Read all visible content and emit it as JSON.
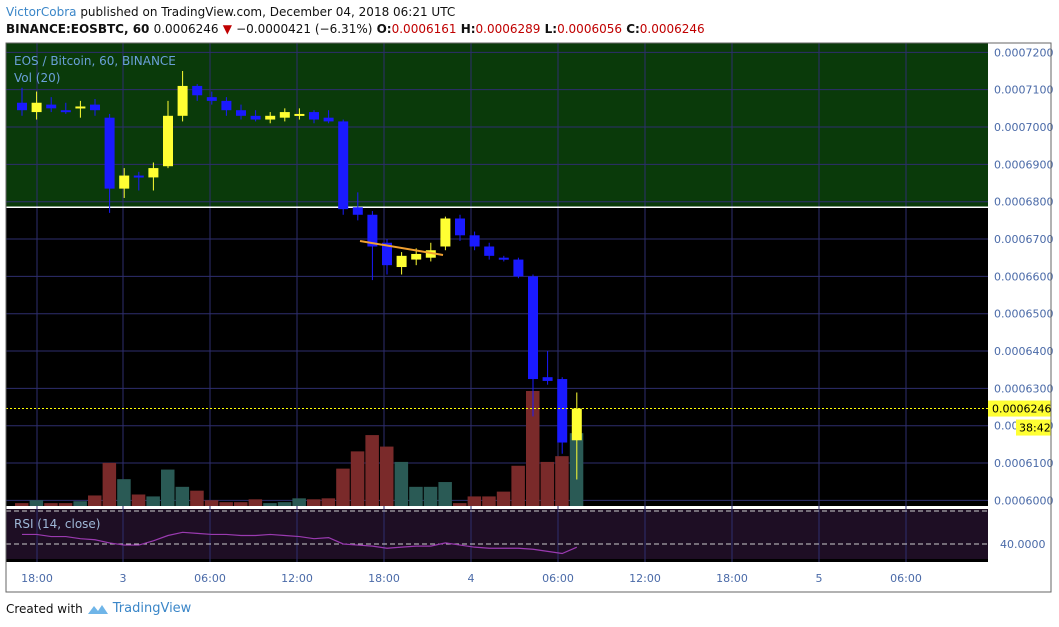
{
  "header": {
    "author": "VictorCobra",
    "published_text": "published on TradingView.com, December 04, 2018 06:21 UTC",
    "symbol": "BINANCE:EOSBTC, 60",
    "last": "0.0006246",
    "arrow": "▼",
    "change": "−0.0000421 (−6.31%)",
    "o_label": "O:",
    "o_value": "0.0006161",
    "h_label": "H:",
    "h_value": "0.0006289",
    "l_label": "L:",
    "l_value": "0.0006056",
    "c_label": "C:",
    "c_value": "0.0006246"
  },
  "overlays": {
    "series_title": "EOS / Bitcoin, 60, BINANCE",
    "volume_label": "Vol (20)",
    "rsi_label": "RSI (14, close)"
  },
  "price_axis": {
    "ticks": [
      "0.0007200",
      "0.0007100",
      "0.0007000",
      "0.0006900",
      "0.0006800",
      "0.0006700",
      "0.0006600",
      "0.0006500",
      "0.0006400",
      "0.0006300",
      "0.0006200",
      "0.0006100",
      "0.0006000"
    ],
    "current_price": "0.0006246",
    "countdown": "38:42"
  },
  "rsi_axis": {
    "tick": "40.0000"
  },
  "time_axis": [
    "18:00",
    "3",
    "06:00",
    "12:00",
    "18:00",
    "4",
    "06:00",
    "12:00",
    "18:00",
    "5",
    "06:00"
  ],
  "footer": {
    "created_with": "Created with",
    "brand": "TradingView"
  },
  "colors": {
    "bull": "#ffff33",
    "bear": "#1a1aff",
    "zone": "#0a3a0a",
    "vol_up": "#2a5a55",
    "vol_down": "#7a2a2a",
    "rsi_line": "#9a3ab0",
    "trendline": "#f0a030"
  },
  "chart_data": {
    "type": "candlestick",
    "title": "EOS / Bitcoin, 60, BINANCE",
    "ylim": [
      0.0005985,
      0.0007225
    ],
    "candles": [
      {
        "o": 0.0007065,
        "h": 0.0007105,
        "l": 0.000703,
        "c": 0.0007045
      },
      {
        "o": 0.000704,
        "h": 0.0007095,
        "l": 0.000702,
        "c": 0.0007065
      },
      {
        "o": 0.000706,
        "h": 0.000708,
        "l": 0.000704,
        "c": 0.000705
      },
      {
        "o": 0.0007045,
        "h": 0.0007065,
        "l": 0.0007035,
        "c": 0.000704
      },
      {
        "o": 0.000705,
        "h": 0.000707,
        "l": 0.0007025,
        "c": 0.0007055
      },
      {
        "o": 0.000706,
        "h": 0.0007075,
        "l": 0.000703,
        "c": 0.0007045
      },
      {
        "o": 0.0007025,
        "h": 0.0007035,
        "l": 0.000677,
        "c": 0.0006835
      },
      {
        "o": 0.0006835,
        "h": 0.000689,
        "l": 0.000681,
        "c": 0.000687
      },
      {
        "o": 0.000687,
        "h": 0.000688,
        "l": 0.000683,
        "c": 0.0006865
      },
      {
        "o": 0.0006865,
        "h": 0.0006905,
        "l": 0.000683,
        "c": 0.000689
      },
      {
        "o": 0.0006895,
        "h": 0.000707,
        "l": 0.000689,
        "c": 0.000703
      },
      {
        "o": 0.000703,
        "h": 0.000715,
        "l": 0.0007015,
        "c": 0.000711
      },
      {
        "o": 0.000711,
        "h": 0.0007115,
        "l": 0.000707,
        "c": 0.0007085
      },
      {
        "o": 0.000708,
        "h": 0.0007095,
        "l": 0.000706,
        "c": 0.000707
      },
      {
        "o": 0.000707,
        "h": 0.000708,
        "l": 0.000703,
        "c": 0.0007045
      },
      {
        "o": 0.0007045,
        "h": 0.000706,
        "l": 0.000702,
        "c": 0.000703
      },
      {
        "o": 0.000703,
        "h": 0.0007045,
        "l": 0.0007015,
        "c": 0.000702
      },
      {
        "o": 0.000702,
        "h": 0.000704,
        "l": 0.000701,
        "c": 0.000703
      },
      {
        "o": 0.0007025,
        "h": 0.000705,
        "l": 0.0007015,
        "c": 0.000704
      },
      {
        "o": 0.0007035,
        "h": 0.000705,
        "l": 0.000702,
        "c": 0.0007035
      },
      {
        "o": 0.000704,
        "h": 0.0007045,
        "l": 0.000701,
        "c": 0.000702
      },
      {
        "o": 0.0007025,
        "h": 0.0007045,
        "l": 0.000701,
        "c": 0.0007015
      },
      {
        "o": 0.0007015,
        "h": 0.000702,
        "l": 0.0006765,
        "c": 0.000678
      },
      {
        "o": 0.0006785,
        "h": 0.0006825,
        "l": 0.000675,
        "c": 0.0006765
      },
      {
        "o": 0.0006765,
        "h": 0.0006775,
        "l": 0.000659,
        "c": 0.000668
      },
      {
        "o": 0.000669,
        "h": 0.00067,
        "l": 0.0006605,
        "c": 0.000663
      },
      {
        "o": 0.0006625,
        "h": 0.0006665,
        "l": 0.0006605,
        "c": 0.0006655
      },
      {
        "o": 0.0006645,
        "h": 0.0006675,
        "l": 0.000663,
        "c": 0.000666
      },
      {
        "o": 0.000665,
        "h": 0.000669,
        "l": 0.000664,
        "c": 0.000667
      },
      {
        "o": 0.000668,
        "h": 0.000676,
        "l": 0.000667,
        "c": 0.0006755
      },
      {
        "o": 0.0006755,
        "h": 0.0006765,
        "l": 0.0006695,
        "c": 0.000671
      },
      {
        "o": 0.000671,
        "h": 0.000672,
        "l": 0.000667,
        "c": 0.000668
      },
      {
        "o": 0.000668,
        "h": 0.000669,
        "l": 0.0006645,
        "c": 0.0006655
      },
      {
        "o": 0.000665,
        "h": 0.0006655,
        "l": 0.000664,
        "c": 0.0006645
      },
      {
        "o": 0.0006645,
        "h": 0.000665,
        "l": 0.0006595,
        "c": 0.00066
      },
      {
        "o": 0.00066,
        "h": 0.0006605,
        "l": 0.0006225,
        "c": 0.0006325
      },
      {
        "o": 0.000633,
        "h": 0.00064,
        "l": 0.000631,
        "c": 0.000632
      },
      {
        "o": 0.0006325,
        "h": 0.000633,
        "l": 0.0006125,
        "c": 0.0006155
      },
      {
        "o": 0.0006161,
        "h": 0.0006289,
        "l": 0.0006056,
        "c": 0.0006246
      }
    ],
    "volume": [
      3,
      6,
      3,
      3,
      5,
      11,
      45,
      28,
      12,
      10,
      38,
      20,
      16,
      6,
      4,
      4,
      7,
      3,
      4,
      8,
      7,
      8,
      39,
      57,
      74,
      62,
      46,
      20,
      20,
      25,
      3,
      10,
      10,
      15,
      42,
      120,
      46,
      52,
      76
    ],
    "rsi": [
      46,
      46,
      44,
      44,
      42,
      41,
      38,
      36,
      36,
      40,
      45,
      48,
      47,
      46,
      46,
      45,
      45,
      46,
      45,
      44,
      42,
      43,
      37,
      36,
      35,
      33,
      34,
      35,
      35,
      38,
      36,
      34,
      33,
      33,
      33,
      32,
      30,
      28,
      34
    ]
  }
}
